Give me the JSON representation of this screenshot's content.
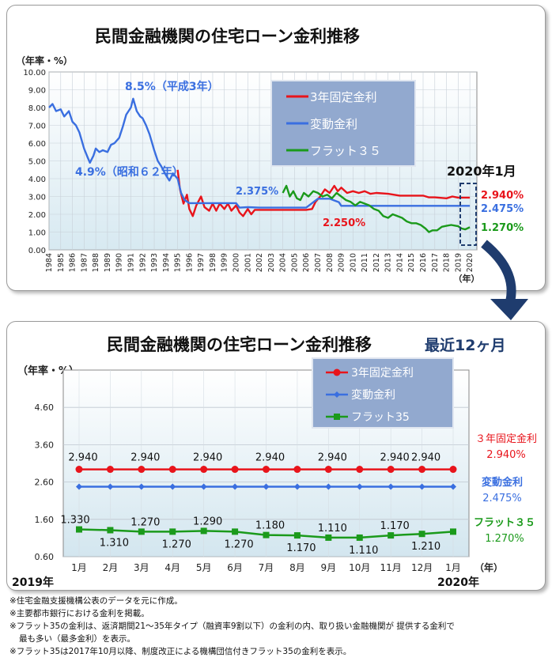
{
  "top": {
    "title": "民間金融機関の住宅ローン金利推移",
    "unit": "（年率・%）",
    "x_unit": "（年）",
    "date_label": "2020年1月",
    "peak_label": "8.5%（平成3年）",
    "low_label": "4.9%（昭和６２年）",
    "label_2375": "2.375%",
    "label_2250": "2.250%",
    "end_fixed": "2.940%",
    "end_var": "2.475%",
    "end_flat": "1.270%",
    "legend": [
      "3年固定金利",
      "変動金利",
      "フラット３５"
    ]
  },
  "bottom": {
    "title": "民間金融機関の住宅ローン金利推移",
    "subtitle": "最近12ヶ月",
    "unit": "（年率・%）",
    "x_unit": "（年）",
    "year_start": "2019年",
    "year_end": "2020年",
    "legend": [
      "3年固定金利",
      "変動金利",
      "フラット35"
    ],
    "right_fixed_name": "３年固定金利",
    "right_fixed_val": "2.940%",
    "right_var_name": "変動金利",
    "right_var_val": "2.475%",
    "right_flat_name": "フラット３５",
    "right_flat_val": "1.270%"
  },
  "notes": [
    "※住宅金融支援機構公表のデータを元に作成。",
    "※主要都市銀行における金利を掲載。",
    "※フラット35の金利は、返済期間21～35年タイプ（融資率9割以下）の金利の内、取り扱い金融機関が 提供する金利で",
    "最も多い（最多金利）を表示。",
    "※フラット35は2017年10月以降、制度改正による機構団信付きフラット35の金利を表示。"
  ],
  "colors": {
    "fixed": "#e8141b",
    "variable": "#3a6fe0",
    "flat35": "#1b9a1b",
    "legend_bg": "#92a9cf",
    "title_accent": "#1f3c6e"
  },
  "chart_data": [
    {
      "type": "line",
      "title": "民間金融機関の住宅ローン金利推移",
      "ylabel": "（年率・%）",
      "xlabel": "（年）",
      "ylim": [
        0,
        10
      ],
      "yticks": [
        "0.00",
        "1.00",
        "2.00",
        "3.00",
        "4.00",
        "5.00",
        "6.00",
        "7.00",
        "8.00",
        "9.00",
        "10.00"
      ],
      "xticks": [
        "1984",
        "1985",
        "1986",
        "1987",
        "1988",
        "1989",
        "1990",
        "1991",
        "1992",
        "1993",
        "1994",
        "1995",
        "1996",
        "1997",
        "1998",
        "1999",
        "2000",
        "2001",
        "2002",
        "2003",
        "2004",
        "2005",
        "2006",
        "2007",
        "2008",
        "2009",
        "2010",
        "2011",
        "2012",
        "2013",
        "2014",
        "2015",
        "2016",
        "2017",
        "2018",
        "2019",
        "2020"
      ],
      "grid": true,
      "legend_position": "top-center",
      "series": [
        {
          "name": "3年固定金利",
          "color": "#e8141b",
          "points": [
            [
              1995.0,
              4.5
            ],
            [
              1995.2,
              3.4
            ],
            [
              1995.5,
              2.6
            ],
            [
              1995.8,
              3.1
            ],
            [
              1996.0,
              2.3
            ],
            [
              1996.3,
              1.9
            ],
            [
              1996.6,
              2.5
            ],
            [
              1997.0,
              3.0
            ],
            [
              1997.3,
              2.4
            ],
            [
              1997.7,
              2.2
            ],
            [
              1998.0,
              2.6
            ],
            [
              1998.3,
              2.2
            ],
            [
              1998.6,
              2.6
            ],
            [
              1999.0,
              2.3
            ],
            [
              1999.3,
              2.6
            ],
            [
              1999.6,
              2.2
            ],
            [
              2000.0,
              2.5
            ],
            [
              2000.3,
              2.1
            ],
            [
              2000.6,
              1.9
            ],
            [
              2001.0,
              2.3
            ],
            [
              2001.3,
              2.0
            ],
            [
              2001.6,
              2.25
            ],
            [
              2002.0,
              2.25
            ],
            [
              2003.0,
              2.25
            ],
            [
              2004.0,
              2.25
            ],
            [
              2005.0,
              2.25
            ],
            [
              2006.0,
              2.25
            ],
            [
              2006.5,
              2.3
            ],
            [
              2006.8,
              2.7
            ],
            [
              2007.2,
              3.0
            ],
            [
              2007.6,
              3.4
            ],
            [
              2008.0,
              3.2
            ],
            [
              2008.4,
              3.6
            ],
            [
              2008.7,
              3.3
            ],
            [
              2009.0,
              3.5
            ],
            [
              2009.5,
              3.2
            ],
            [
              2010.0,
              3.3
            ],
            [
              2010.5,
              3.2
            ],
            [
              2011.0,
              3.3
            ],
            [
              2011.5,
              3.15
            ],
            [
              2012.0,
              3.2
            ],
            [
              2013.0,
              3.15
            ],
            [
              2014.0,
              3.05
            ],
            [
              2015.0,
              3.05
            ],
            [
              2016.0,
              3.05
            ],
            [
              2016.5,
              2.95
            ],
            [
              2017.0,
              2.95
            ],
            [
              2018.0,
              2.9
            ],
            [
              2018.5,
              3.0
            ],
            [
              2019.0,
              2.94
            ],
            [
              2020.0,
              2.94
            ]
          ]
        },
        {
          "name": "変動金利",
          "color": "#3a6fe0",
          "points": [
            [
              1984.0,
              8.0
            ],
            [
              1984.3,
              8.2
            ],
            [
              1984.6,
              7.8
            ],
            [
              1985.0,
              7.9
            ],
            [
              1985.3,
              7.5
            ],
            [
              1985.7,
              7.8
            ],
            [
              1986.0,
              7.2
            ],
            [
              1986.3,
              7.0
            ],
            [
              1986.6,
              6.6
            ],
            [
              1987.0,
              5.7
            ],
            [
              1987.3,
              5.2
            ],
            [
              1987.5,
              4.9
            ],
            [
              1987.8,
              5.3
            ],
            [
              1988.0,
              5.7
            ],
            [
              1988.3,
              5.5
            ],
            [
              1988.6,
              5.6
            ],
            [
              1989.0,
              5.5
            ],
            [
              1989.3,
              5.9
            ],
            [
              1989.6,
              6.0
            ],
            [
              1990.0,
              6.3
            ],
            [
              1990.3,
              6.9
            ],
            [
              1990.6,
              7.6
            ],
            [
              1991.0,
              8.0
            ],
            [
              1991.2,
              8.5
            ],
            [
              1991.5,
              7.8
            ],
            [
              1991.8,
              7.5
            ],
            [
              1992.0,
              7.4
            ],
            [
              1992.3,
              7.0
            ],
            [
              1992.6,
              6.5
            ],
            [
              1993.0,
              5.6
            ],
            [
              1993.3,
              5.0
            ],
            [
              1993.6,
              4.7
            ],
            [
              1994.0,
              4.2
            ],
            [
              1994.3,
              3.9
            ],
            [
              1994.6,
              4.3
            ],
            [
              1995.0,
              4.0
            ],
            [
              1995.3,
              3.2
            ],
            [
              1995.6,
              2.8
            ],
            [
              1996.0,
              2.625
            ],
            [
              1997.0,
              2.625
            ],
            [
              1998.0,
              2.625
            ],
            [
              1999.0,
              2.625
            ],
            [
              2000.0,
              2.625
            ],
            [
              2000.3,
              2.375
            ],
            [
              2001.0,
              2.4
            ],
            [
              2002.0,
              2.375
            ],
            [
              2003.0,
              2.375
            ],
            [
              2004.0,
              2.375
            ],
            [
              2005.0,
              2.375
            ],
            [
              2006.0,
              2.375
            ],
            [
              2006.5,
              2.625
            ],
            [
              2007.0,
              2.875
            ],
            [
              2008.0,
              2.875
            ],
            [
              2008.8,
              2.675
            ],
            [
              2009.0,
              2.475
            ],
            [
              2010.0,
              2.475
            ],
            [
              2012.0,
              2.475
            ],
            [
              2014.0,
              2.475
            ],
            [
              2016.0,
              2.475
            ],
            [
              2018.0,
              2.475
            ],
            [
              2020.0,
              2.475
            ]
          ]
        },
        {
          "name": "フラット３５",
          "color": "#1b9a1b",
          "points": [
            [
              2004.0,
              3.2
            ],
            [
              2004.3,
              3.6
            ],
            [
              2004.6,
              3.0
            ],
            [
              2004.9,
              3.3
            ],
            [
              2005.2,
              2.9
            ],
            [
              2005.5,
              2.8
            ],
            [
              2005.8,
              3.2
            ],
            [
              2006.2,
              3.0
            ],
            [
              2006.6,
              3.3
            ],
            [
              2007.0,
              3.2
            ],
            [
              2007.4,
              3.0
            ],
            [
              2007.8,
              3.1
            ],
            [
              2008.2,
              2.9
            ],
            [
              2008.6,
              3.2
            ],
            [
              2009.0,
              3.0
            ],
            [
              2009.4,
              2.8
            ],
            [
              2009.8,
              2.7
            ],
            [
              2010.2,
              2.5
            ],
            [
              2010.6,
              2.7
            ],
            [
              2011.0,
              2.6
            ],
            [
              2011.4,
              2.5
            ],
            [
              2011.8,
              2.3
            ],
            [
              2012.2,
              2.2
            ],
            [
              2012.6,
              1.9
            ],
            [
              2013.0,
              1.8
            ],
            [
              2013.4,
              2.0
            ],
            [
              2013.8,
              1.9
            ],
            [
              2014.2,
              1.8
            ],
            [
              2014.6,
              1.6
            ],
            [
              2015.0,
              1.5
            ],
            [
              2015.4,
              1.5
            ],
            [
              2015.8,
              1.4
            ],
            [
              2016.2,
              1.2
            ],
            [
              2016.5,
              1.0
            ],
            [
              2016.8,
              1.1
            ],
            [
              2017.2,
              1.1
            ],
            [
              2017.6,
              1.3
            ],
            [
              2018.0,
              1.35
            ],
            [
              2018.4,
              1.4
            ],
            [
              2018.8,
              1.35
            ],
            [
              2019.0,
              1.33
            ],
            [
              2019.3,
              1.2
            ],
            [
              2019.6,
              1.15
            ],
            [
              2020.0,
              1.27
            ]
          ]
        }
      ]
    },
    {
      "type": "line",
      "title": "民間金融機関の住宅ローン金利推移",
      "subtitle": "最近12ヶ月",
      "ylabel": "（年率・%）",
      "xlabel": "（年）",
      "ylim": [
        0.6,
        5.6
      ],
      "yticks": [
        "0.60",
        "1.60",
        "2.60",
        "3.60",
        "4.60"
      ],
      "categories": [
        "1月",
        "2月",
        "3月",
        "4月",
        "5月",
        "6月",
        "7月",
        "8月",
        "9月",
        "10月",
        "11月",
        "12月",
        "1月"
      ],
      "grid": true,
      "legend_position": "top-center",
      "series": [
        {
          "name": "3年固定金利",
          "color": "#e8141b",
          "marker": "circle",
          "values": [
            2.94,
            2.94,
            2.94,
            2.94,
            2.94,
            2.94,
            2.94,
            2.94,
            2.94,
            2.94,
            2.94,
            2.94,
            2.94
          ],
          "labels": [
            "",
            "",
            "2.940",
            "",
            "",
            "2.940",
            "",
            "2.940",
            "",
            "2.940",
            "",
            "2.940",
            "2.940"
          ],
          "labels_alt": [
            "2.940"
          ]
        },
        {
          "name": "変動金利",
          "color": "#3a6fe0",
          "marker": "diamond",
          "values": [
            2.475,
            2.475,
            2.475,
            2.475,
            2.475,
            2.475,
            2.475,
            2.475,
            2.475,
            2.475,
            2.475,
            2.475,
            2.475
          ]
        },
        {
          "name": "フラット35",
          "color": "#1b9a1b",
          "marker": "square",
          "values": [
            1.33,
            1.31,
            1.27,
            1.27,
            1.29,
            1.27,
            1.18,
            1.17,
            1.11,
            1.11,
            1.17,
            1.21,
            1.27
          ],
          "labels": [
            "1.330",
            "1.310",
            "1.270",
            "1.270",
            "1.290",
            "1.270",
            "1.180",
            "1.170",
            "1.110",
            "1.110",
            "1.170",
            "1.210",
            ""
          ]
        }
      ]
    }
  ]
}
